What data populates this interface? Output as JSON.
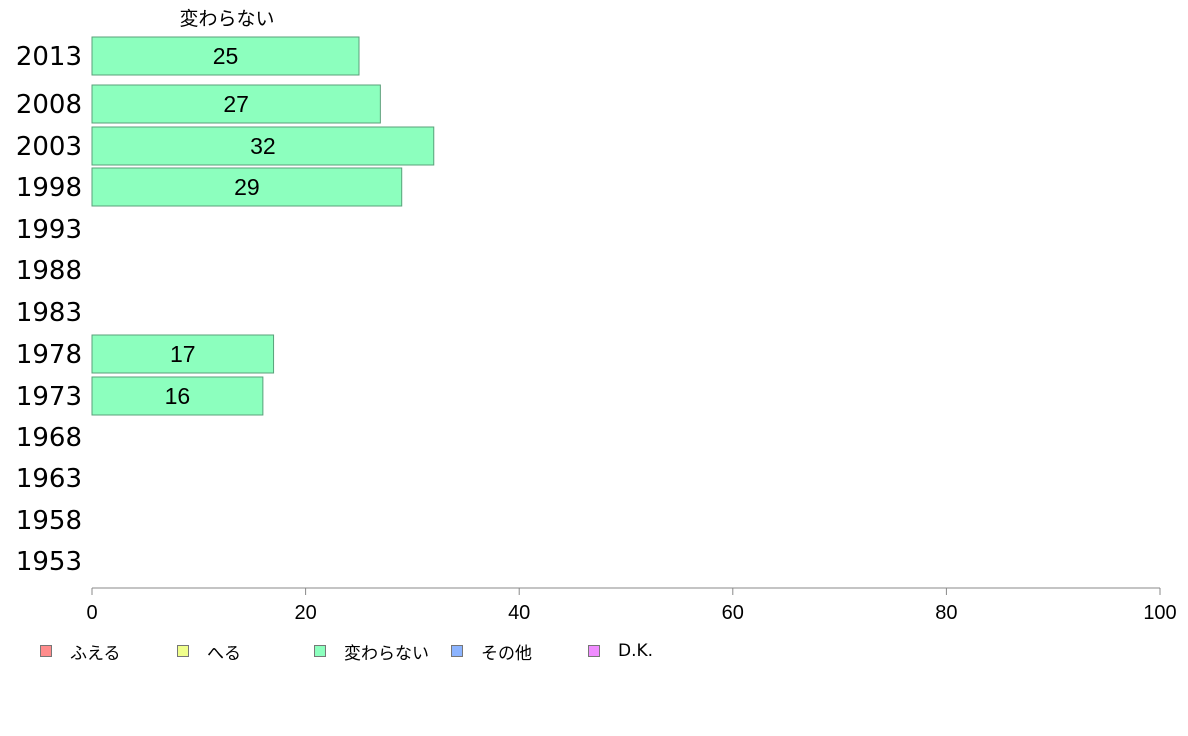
{
  "chart_data": {
    "type": "bar",
    "orientation": "horizontal",
    "series_title": "変わらない",
    "categories": [
      "2013",
      "2008",
      "2003",
      "1998",
      "1993",
      "1988",
      "1983",
      "1978",
      "1973",
      "1968",
      "1963",
      "1958",
      "1953"
    ],
    "series": [
      {
        "name": "変わらない",
        "values": [
          25,
          27,
          32,
          29,
          null,
          null,
          null,
          17,
          16,
          null,
          null,
          null,
          null
        ]
      }
    ],
    "data_labels": [
      "25",
      "27",
      "32",
      "29",
      "",
      "",
      "",
      "17",
      "16",
      "",
      "",
      "",
      ""
    ],
    "xlim": [
      0,
      100
    ],
    "x_ticks": [
      0,
      20,
      40,
      60,
      80,
      100
    ],
    "x_tick_labels": [
      "0",
      "20",
      "40",
      "60",
      "80",
      "100"
    ],
    "grid": false,
    "legend_position": "bottom-left",
    "legend": [
      {
        "label": "ふえる",
        "color": "#ff8c8c"
      },
      {
        "label": "へる",
        "color": "#f0ff8c"
      },
      {
        "label": "変わらない",
        "color": "#8cffbe"
      },
      {
        "label": "その他",
        "color": "#8cb4ff"
      },
      {
        "label": "D.K.",
        "color": "#f08cff"
      }
    ],
    "bar_color": "#8cffbe",
    "bar_border_color": "#5aa07a",
    "axis_color": "#888888"
  }
}
